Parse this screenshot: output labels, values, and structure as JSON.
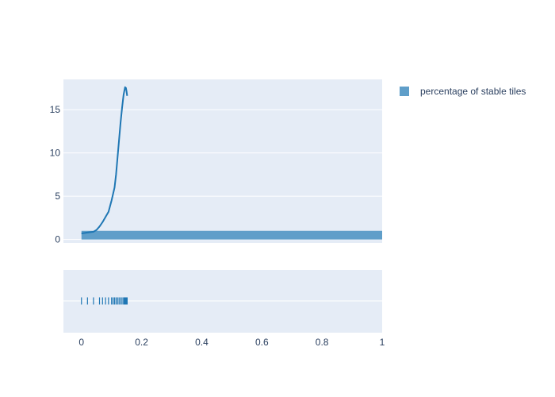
{
  "chart_data": {
    "type": "histogram",
    "description_free": true,
    "colors": {
      "background": "#ffffff",
      "plot_bg": "#e5ecf6",
      "grid": "#ffffff",
      "bar": "#5f9ec9",
      "line": "#1f77b4",
      "tick_text": "#2a3f5f"
    },
    "x_axis": {
      "range": [
        -0.06,
        1.0
      ],
      "ticks": [
        0,
        0.2,
        0.4,
        0.6,
        0.8,
        1
      ],
      "tick_labels": [
        "0",
        "0.2",
        "0.4",
        "0.6",
        "0.8",
        "1"
      ]
    },
    "main_panel": {
      "y_range": [
        -0.4,
        18.5
      ],
      "y_ticks": [
        0,
        5,
        10,
        15
      ],
      "y_tick_labels": [
        "0",
        "5",
        "10",
        "15"
      ],
      "bars": [
        {
          "x0": 0.0,
          "x1": 1.0,
          "value": 1.0
        }
      ],
      "kde_curve": {
        "name": "percentage of stable tiles",
        "x": [
          0.0,
          0.02,
          0.04,
          0.05,
          0.06,
          0.07,
          0.08,
          0.09,
          0.1,
          0.11,
          0.115,
          0.12,
          0.125,
          0.13,
          0.135,
          0.14,
          0.145,
          0.148,
          0.15,
          0.152
        ],
        "y": [
          0.7,
          0.8,
          0.9,
          1.1,
          1.5,
          2.0,
          2.6,
          3.2,
          4.5,
          6.0,
          7.5,
          9.5,
          11.5,
          13.5,
          15.2,
          16.7,
          17.6,
          17.5,
          17.1,
          16.6
        ]
      }
    },
    "rug_panel": {
      "x": [
        0.0,
        0.02,
        0.04,
        0.06,
        0.07,
        0.08,
        0.09,
        0.1,
        0.105,
        0.11,
        0.115,
        0.12,
        0.125,
        0.13,
        0.135,
        0.14,
        0.142,
        0.144,
        0.146,
        0.148,
        0.15,
        0.152
      ]
    },
    "legend": {
      "placement": "top-right",
      "entries": [
        {
          "label": "percentage of stable tiles",
          "color": "#5f9ec9"
        }
      ]
    }
  }
}
